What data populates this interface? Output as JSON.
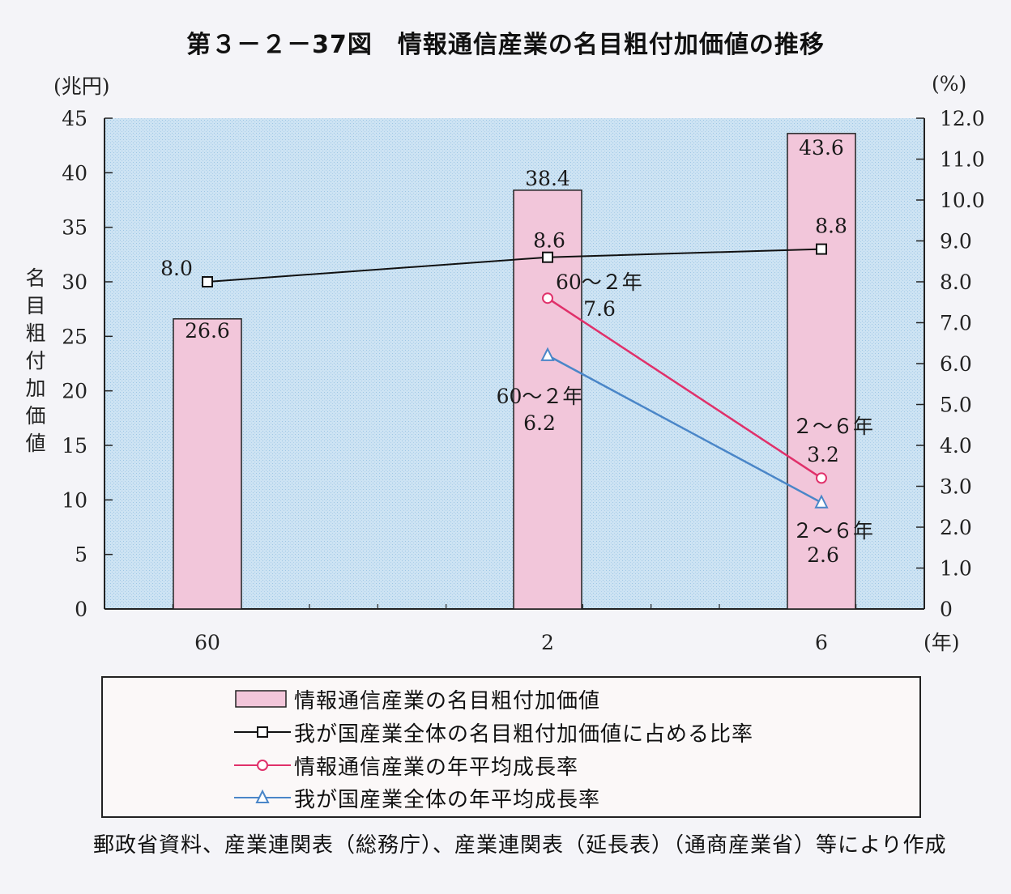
{
  "title": "第３－２－37図　情報通信産業の名目粗付加価値の推移",
  "chart_data": {
    "type": "bar",
    "categories": [
      "60",
      "2",
      "6"
    ],
    "y_left": {
      "unit": "(兆円)",
      "label": "名目粗付加価値",
      "range": [
        0,
        45
      ],
      "ticks": [
        "0",
        "5",
        "10",
        "15",
        "20",
        "25",
        "30",
        "35",
        "40",
        "45"
      ]
    },
    "y_right": {
      "unit": "(%)",
      "range": [
        0,
        12
      ],
      "ticks": [
        "0",
        "1.0",
        "2.0",
        "3.0",
        "4.0",
        "5.0",
        "6.0",
        "7.0",
        "8.0",
        "9.0",
        "10.0",
        "11.0",
        "12.0"
      ]
    },
    "x_unit": "(年)",
    "series": [
      {
        "name": "情報通信産業の名目粗付加価値",
        "kind": "bar",
        "axis": "left",
        "color": "#f2c6da",
        "values": [
          26.6,
          38.4,
          43.6
        ],
        "labels": [
          "26.6",
          "38.4",
          "43.6"
        ]
      },
      {
        "name": "我が国産業全体の名目粗付加価値に占める比率",
        "kind": "line",
        "marker": "square",
        "axis": "right",
        "color": "#111111",
        "points": [
          {
            "x": "60",
            "y": 8.0,
            "label": "8.0"
          },
          {
            "x": "2",
            "y": 8.6,
            "label": "8.6"
          },
          {
            "x": "6",
            "y": 8.8,
            "label": "8.8"
          }
        ]
      },
      {
        "name": "情報通信産業の年平均成長率",
        "kind": "line",
        "marker": "circle",
        "axis": "right",
        "color": "#e0306a",
        "points": [
          {
            "x": "2",
            "y": 7.6,
            "period": "60～２年",
            "label": "7.6"
          },
          {
            "x": "6",
            "y": 3.2,
            "period": "２～６年",
            "label": "3.2"
          }
        ]
      },
      {
        "name": "我が国産業全体の年平均成長率",
        "kind": "line",
        "marker": "triangle",
        "axis": "right",
        "color": "#4a86c8",
        "points": [
          {
            "x": "2",
            "y": 6.2,
            "period": "60～２年",
            "label": "6.2"
          },
          {
            "x": "6",
            "y": 2.6,
            "period": "２～６年",
            "label": "2.6"
          }
        ]
      }
    ]
  },
  "source_note": "郵政省資料、産業連関表（総務庁）、産業連関表（延長表）（通商産業省）等により作成"
}
